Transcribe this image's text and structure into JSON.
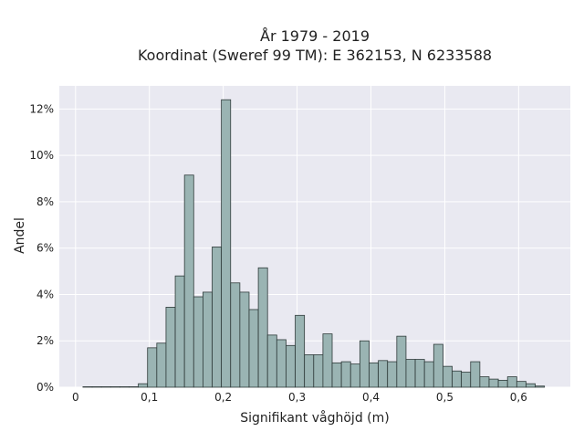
{
  "chart_data": {
    "type": "bar",
    "title": "År 1979 - 2019",
    "subtitle": "Koordinat (Sweref 99 TM): E 362153, N 6233588",
    "xlabel": "Signifikant våghöjd (m)",
    "ylabel": "Andel",
    "xlim": [
      -0.022,
      0.67
    ],
    "ylim": [
      0,
      13
    ],
    "grid": true,
    "x_ticks": [
      {
        "value": 0.0,
        "label": "0"
      },
      {
        "value": 0.1,
        "label": "0,1"
      },
      {
        "value": 0.2,
        "label": "0,2"
      },
      {
        "value": 0.3,
        "label": "0,3"
      },
      {
        "value": 0.4,
        "label": "0,4"
      },
      {
        "value": 0.5,
        "label": "0,5"
      },
      {
        "value": 0.6,
        "label": "0,6"
      }
    ],
    "y_ticks": [
      {
        "value": 0,
        "label": "0%"
      },
      {
        "value": 2,
        "label": "2%"
      },
      {
        "value": 4,
        "label": "4%"
      },
      {
        "value": 6,
        "label": "6%"
      },
      {
        "value": 8,
        "label": "8%"
      },
      {
        "value": 10,
        "label": "10%"
      },
      {
        "value": 12,
        "label": "12%"
      }
    ],
    "bin_width": 0.0125,
    "bin_start": 0.01,
    "values": [
      0.02,
      0.02,
      0.02,
      0.02,
      0.02,
      0.02,
      0.15,
      1.7,
      1.9,
      3.45,
      4.8,
      9.15,
      3.9,
      4.1,
      6.05,
      12.4,
      4.5,
      4.1,
      3.35,
      5.15,
      2.25,
      2.05,
      1.8,
      3.1,
      1.4,
      1.4,
      2.3,
      1.05,
      1.1,
      1.0,
      2.0,
      1.05,
      1.15,
      1.1,
      2.2,
      1.2,
      1.2,
      1.1,
      1.85,
      0.9,
      0.7,
      0.65,
      1.1,
      0.45,
      0.35,
      0.3,
      0.45,
      0.25,
      0.15,
      0.05
    ],
    "colors": {
      "bar_fill": "#9ab4b3",
      "bar_stroke": "#2f3b3a",
      "plot_bg": "#e9e9f1",
      "grid": "#ffffff"
    }
  }
}
